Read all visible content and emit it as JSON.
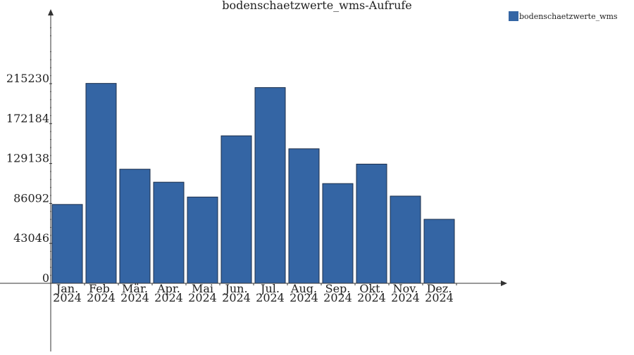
{
  "chart_data": {
    "type": "bar",
    "title": "bodenschaetzwerte_wms-Aufrufe",
    "categories": [
      [
        "Jan.",
        "2024"
      ],
      [
        "Feb.",
        "2024"
      ],
      [
        "Mär.",
        "2024"
      ],
      [
        "Apr.",
        "2024"
      ],
      [
        "Mai",
        "2024"
      ],
      [
        "Jun.",
        "2024"
      ],
      [
        "Jul.",
        "2024"
      ],
      [
        "Aug.",
        "2024"
      ],
      [
        "Sep.",
        "2024"
      ],
      [
        "Okt.",
        "2024"
      ],
      [
        "Nov.",
        "2024"
      ],
      [
        "Dez.",
        "2024"
      ]
    ],
    "series": [
      {
        "name": "bodenschaetzwerte_wms",
        "color": "#3465a4",
        "values": [
          85000,
          215500,
          123000,
          109000,
          93000,
          159000,
          211000,
          145000,
          107500,
          128500,
          94000,
          69000
        ]
      }
    ],
    "yticks": [
      "0",
      "43046",
      "86092",
      "129138",
      "172184",
      "215230"
    ],
    "ytick_values": [
      0,
      43046,
      86092,
      129138,
      172184,
      215230
    ],
    "xlabel": "",
    "ylabel": "",
    "legend_position": "top-right",
    "grid": false
  }
}
